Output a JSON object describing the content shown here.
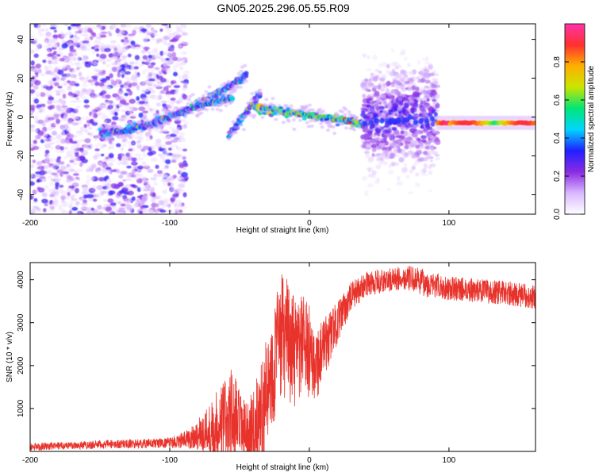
{
  "figure": {
    "title": "GN05.2025.296.05.55.R09"
  },
  "colors": {
    "snr_line": "#e8332c",
    "background": "#ffffff",
    "colormap": [
      "#ffffff",
      "#d9b8ff",
      "#8a2be2",
      "#2020ff",
      "#00d5ff",
      "#00e676",
      "#c8e600",
      "#ffb000",
      "#ff3030",
      "#ff33aa"
    ]
  },
  "chart_data": [
    {
      "id": "spectrogram",
      "type": "heatmap",
      "title": "",
      "xlabel": "Height of straight line (km)",
      "ylabel": "Frequency (Hz)",
      "xlim": [
        -200,
        162
      ],
      "ylim": [
        -50,
        48
      ],
      "xticks": [
        -200,
        -100,
        0,
        100
      ],
      "yticks": [
        -40,
        -20,
        0,
        20,
        40
      ],
      "colorbar": {
        "label": "Normalized spectral amplitude",
        "range": [
          0.0,
          1.0
        ],
        "ticks": [
          0.0,
          0.2,
          0.4,
          0.6,
          0.8
        ]
      },
      "features": [
        {
          "name": "broadband noise",
          "x": [
            -200,
            -88
          ],
          "y": [
            -50,
            48
          ],
          "amplitude": 0.15
        },
        {
          "name": "lower descending trace",
          "x": [
            -150,
            -45
          ],
          "y_start": -8,
          "y_end": 22,
          "amplitude": 0.3
        },
        {
          "name": "upper trace",
          "x": [
            -82,
            -55
          ],
          "y_start": 5,
          "y_end": 10,
          "amplitude": 0.35
        },
        {
          "name": "steep branch",
          "x": [
            -58,
            -35
          ],
          "y_start": -10,
          "y_end": 12,
          "amplitude": 0.3
        },
        {
          "name": "converging trace",
          "x": [
            -40,
            38
          ],
          "y_start": 5,
          "y_end": -3,
          "amplitude": 0.5
        },
        {
          "name": "burst band",
          "x": [
            38,
            92
          ],
          "y": [
            -40,
            35
          ],
          "amplitude": 0.25
        },
        {
          "name": "steady line",
          "x": [
            92,
            162
          ],
          "y_center": -3,
          "amplitude": 0.9
        }
      ]
    },
    {
      "id": "snr",
      "type": "line",
      "title": "",
      "xlabel": "Height of straight line (km)",
      "ylabel": "SNR (10 * v/v)",
      "xlim": [
        -200,
        162
      ],
      "ylim": [
        0,
        4400
      ],
      "xticks": [
        -200,
        -100,
        0,
        100
      ],
      "yticks": [
        1000,
        2000,
        3000,
        4000
      ],
      "series": [
        {
          "name": "SNR",
          "x": [
            -200,
            -180,
            -160,
            -140,
            -120,
            -100,
            -90,
            -80,
            -70,
            -60,
            -55,
            -50,
            -45,
            -40,
            -35,
            -30,
            -25,
            -20,
            -15,
            -10,
            -5,
            0,
            5,
            10,
            15,
            20,
            25,
            30,
            40,
            50,
            60,
            70,
            80,
            90,
            100,
            110,
            120,
            130,
            140,
            150,
            162
          ],
          "y": [
            100,
            130,
            150,
            170,
            180,
            200,
            260,
            380,
            520,
            700,
            800,
            550,
            400,
            450,
            900,
            1400,
            2100,
            2700,
            2600,
            2200,
            2500,
            2300,
            2100,
            2300,
            2700,
            3000,
            3300,
            3600,
            3900,
            3950,
            4000,
            4050,
            3950,
            3850,
            3800,
            3780,
            3750,
            3720,
            3700,
            3650,
            3600
          ],
          "noise_amplitude": [
            90,
            90,
            100,
            100,
            110,
            120,
            200,
            350,
            700,
            1100,
            1200,
            900,
            700,
            1000,
            1200,
            1300,
            1400,
            1500,
            1400,
            1300,
            1200,
            1100,
            900,
            800,
            600,
            500,
            400,
            350,
            280,
            300,
            280,
            280,
            320,
            300,
            280,
            280,
            280,
            280,
            280,
            280,
            280
          ]
        }
      ]
    }
  ]
}
